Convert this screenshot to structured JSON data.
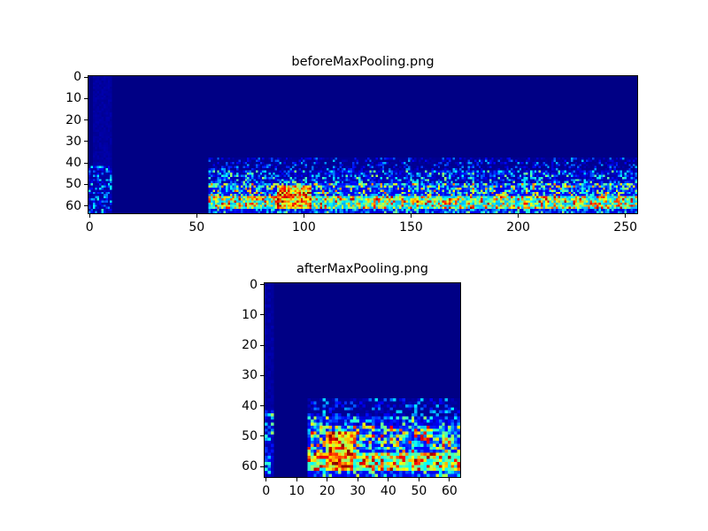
{
  "figure": {
    "background": "#ffffff",
    "axes_edge_color": "#000000",
    "colormap_min_color": "#000080",
    "colormap_max_color": "#800000"
  },
  "chart_data": [
    {
      "type": "heatmap",
      "title": "beforeMaxPooling.png",
      "colormap": "jet",
      "grid": false,
      "legend": "none",
      "cols": 256,
      "rows": 64,
      "xlim": [
        -0.5,
        255.5
      ],
      "ylim": [
        63.5,
        -0.5
      ],
      "y_inverted": true,
      "xticks": [
        0,
        50,
        100,
        150,
        200,
        250
      ],
      "yticks": [
        0,
        10,
        20,
        30,
        40,
        50,
        60
      ],
      "seed": 42,
      "background_value": 0.005,
      "description": "Spectrogram-like feature map: dark navy background, faint lighter vertical strip near column 0-10, sparse blue speckle rows 44-55 starting at column 56, bright cyan/green/yellow band rows 56-61 with red-orange hotspot near columns 88-103",
      "regions": [
        {
          "name": "left-strip",
          "x0": 2,
          "x1": 10,
          "y0": 0,
          "y1": 63,
          "base": 0.02,
          "amp": 0.025,
          "gamma": 1
        },
        {
          "name": "left-strip-lower",
          "x0": 0,
          "x1": 10,
          "y0": 42,
          "y1": 63,
          "base": 0.03,
          "amp": 0.4,
          "gamma": 4
        },
        {
          "name": "upper-faint",
          "x0": 56,
          "x1": 255,
          "y0": 38,
          "y1": 46,
          "base": 0.015,
          "amp": 0.3,
          "gamma": 6
        },
        {
          "name": "mid-sparse",
          "x0": 56,
          "x1": 255,
          "y0": 44,
          "y1": 51,
          "base": 0.04,
          "amp": 0.5,
          "gamma": 4
        },
        {
          "name": "speckle",
          "x0": 56,
          "x1": 255,
          "y0": 50,
          "y1": 57,
          "base": 0.1,
          "amp": 0.7,
          "gamma": 3
        },
        {
          "name": "bright-band",
          "x0": 56,
          "x1": 255,
          "y0": 56,
          "y1": 61,
          "base": 0.3,
          "amp": 0.65,
          "gamma": 2
        },
        {
          "name": "hotspot",
          "x0": 88,
          "x1": 103,
          "y0": 51,
          "y1": 61,
          "base": 0.45,
          "amp": 0.55,
          "gamma": 1.5
        },
        {
          "name": "bottom-edge",
          "x0": 56,
          "x1": 255,
          "y0": 62,
          "y1": 63,
          "base": 0.08,
          "amp": 0.45,
          "gamma": 3
        }
      ]
    },
    {
      "type": "heatmap",
      "title": "afterMaxPooling.png",
      "colormap": "jet",
      "grid": false,
      "legend": "none",
      "cols": 64,
      "rows": 64,
      "xlim": [
        -0.5,
        63.5
      ],
      "ylim": [
        63.5,
        -0.5
      ],
      "y_inverted": true,
      "xticks": [
        0,
        10,
        20,
        30,
        40,
        50,
        60
      ],
      "yticks": [
        0,
        10,
        20,
        30,
        40,
        50,
        60
      ],
      "seed": 7,
      "background_value": 0.005,
      "description": "Max-pooled version of the map above: activity begins at column 14, brighter speckle rows 47-57, intense cyan/green/yellow band rows 56-61 with red-orange cluster near columns 20-28",
      "regions": [
        {
          "name": "left-strip",
          "x0": 0,
          "x1": 2,
          "y0": 0,
          "y1": 63,
          "base": 0.02,
          "amp": 0.03,
          "gamma": 1
        },
        {
          "name": "left-strip-lower",
          "x0": 0,
          "x1": 2,
          "y0": 42,
          "y1": 63,
          "base": 0.05,
          "amp": 0.5,
          "gamma": 3
        },
        {
          "name": "upper-faint",
          "x0": 14,
          "x1": 63,
          "y0": 38,
          "y1": 46,
          "base": 0.02,
          "amp": 0.35,
          "gamma": 5
        },
        {
          "name": "mid-sparse",
          "x0": 14,
          "x1": 63,
          "y0": 44,
          "y1": 51,
          "base": 0.06,
          "amp": 0.55,
          "gamma": 3.5
        },
        {
          "name": "speckle",
          "x0": 14,
          "x1": 63,
          "y0": 47,
          "y1": 57,
          "base": 0.12,
          "amp": 0.8,
          "gamma": 2.6
        },
        {
          "name": "bright-band",
          "x0": 14,
          "x1": 63,
          "y0": 56,
          "y1": 61,
          "base": 0.35,
          "amp": 0.63,
          "gamma": 1.8
        },
        {
          "name": "hotspot",
          "x0": 20,
          "x1": 28,
          "y0": 49,
          "y1": 61,
          "base": 0.5,
          "amp": 0.5,
          "gamma": 1.3
        },
        {
          "name": "bottom-edge",
          "x0": 14,
          "x1": 63,
          "y0": 62,
          "y1": 63,
          "base": 0.1,
          "amp": 0.5,
          "gamma": 3
        }
      ]
    }
  ]
}
